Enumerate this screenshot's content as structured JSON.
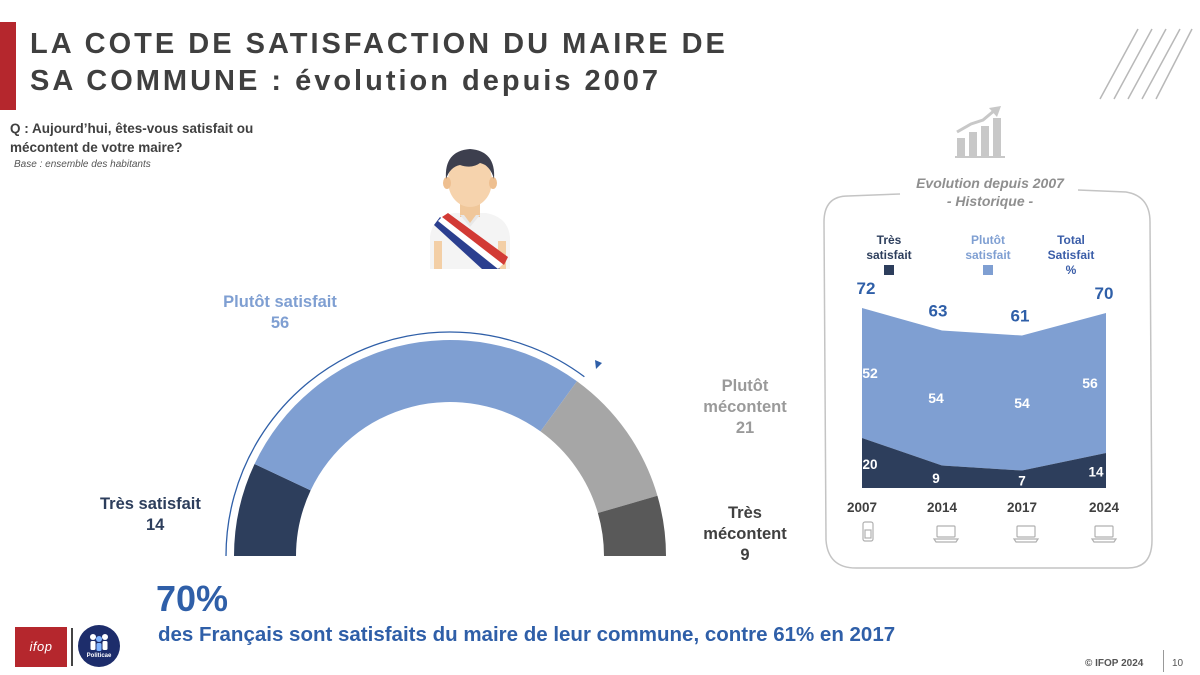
{
  "title": {
    "line1": "LA COTE DE SATISFACTION DU MAIRE DE",
    "line2": "SA COMMUNE : évolution depuis 2007"
  },
  "question": {
    "line1": "Q : Aujourd’hui, êtes-vous satisfait ou",
    "line2": "mécontent de votre maire?",
    "base": "Base : ensemble des habitants"
  },
  "colors": {
    "tres_satisfait": "#2d3e5c",
    "plutot_satisfait": "#7f9fd2",
    "plutot_mecontent": "#a6a6a6",
    "tres_mecontent": "#595959",
    "accent_red": "#b5272d",
    "accent_blue": "#2f5fa8"
  },
  "chart_data": [
    {
      "type": "pie",
      "variant": "semi-donut",
      "title": "",
      "slices": [
        {
          "label": "Très satisfait",
          "value": 14
        },
        {
          "label": "Plutôt satisfait",
          "value": 56
        },
        {
          "label": "Plutôt mécontent",
          "value": 21
        },
        {
          "label": "Très mécontent",
          "value": 9
        }
      ]
    },
    {
      "type": "area",
      "stacked": true,
      "title": "Evolution depuis 2007",
      "subtitle": "- Historique -",
      "x": [
        "2007",
        "2014",
        "2017",
        "2024"
      ],
      "series": [
        {
          "name": "Très satisfait",
          "values": [
            20,
            9,
            7,
            14
          ]
        },
        {
          "name": "Plutôt satisfait",
          "values": [
            52,
            54,
            54,
            56
          ]
        }
      ],
      "totals_label": "Total Satisfait %",
      "totals": [
        72,
        63,
        61,
        70
      ],
      "legend": {
        "tres_line1": "Très",
        "tres_line2": "satisfait",
        "plutot_line1": "Plutôt",
        "plutot_line2": "satisfait",
        "total_line1": "Total",
        "total_line2": "Satisfait",
        "total_line3": "%"
      },
      "x_icons": [
        "phone-icon",
        "laptop-icon",
        "laptop-icon",
        "laptop-icon"
      ]
    }
  ],
  "gauge_labels": {
    "tres_satisfait_label": "Très satisfait",
    "plutot_satisfait_label": "Plutôt satisfait",
    "plutot_mecontent_line1": "Plutôt",
    "plutot_mecontent_line2": "mécontent",
    "tres_mecontent_line1": "Très",
    "tres_mecontent_line2": "mécontent"
  },
  "headline": {
    "percent": "70%",
    "text": "des Français sont satisfaits du maire de leur commune, contre 61% en 2017"
  },
  "footer": {
    "ifop_logo": "ifop",
    "politicae_logo": "Politicae",
    "copyright": "© IFOP 2024",
    "page": "10"
  }
}
